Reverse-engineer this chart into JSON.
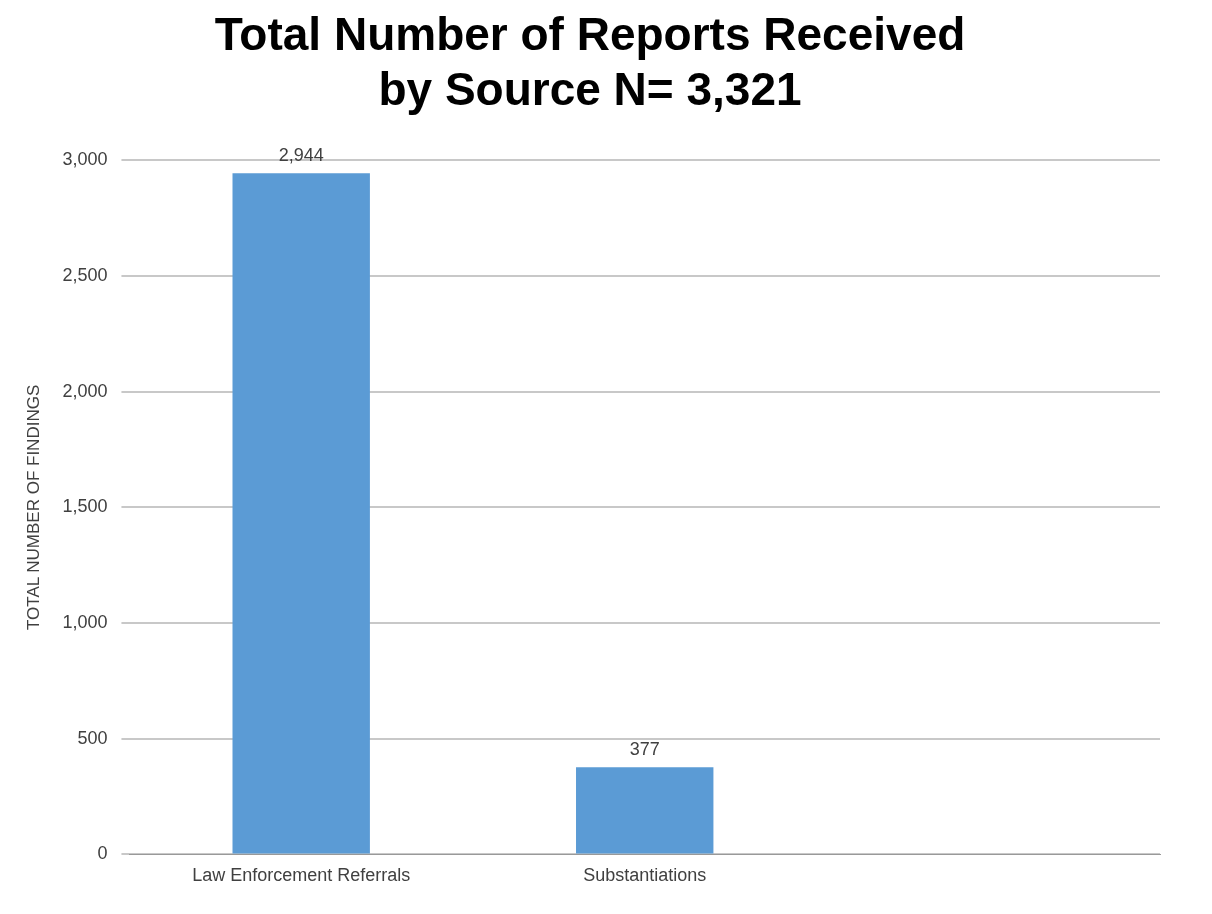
{
  "chart_data": {
    "type": "bar",
    "title": [
      "Total Number of Reports Received",
      "by Source N= 3,321"
    ],
    "ylabel": "TOTAL NUMBER OF FINDINGS",
    "categories": [
      "Law Enforcement Referrals",
      "Substantiations",
      null
    ],
    "values": [
      2944,
      377,
      null
    ],
    "value_labels": [
      "2,944",
      "377",
      null
    ],
    "color": "#5b9bd5",
    "ylim": [
      0,
      3000
    ],
    "yticks": [
      0,
      500,
      {
        "value": 1000,
        "label": "1,000"
      },
      {
        "value": 1500,
        "label": "1,500"
      },
      {
        "value": 2000,
        "label": "2,000"
      },
      {
        "value": 2500,
        "label": "2,500"
      },
      {
        "value": 3000,
        "label": "3,000"
      }
    ],
    "grid": "y",
    "legend": false
  }
}
